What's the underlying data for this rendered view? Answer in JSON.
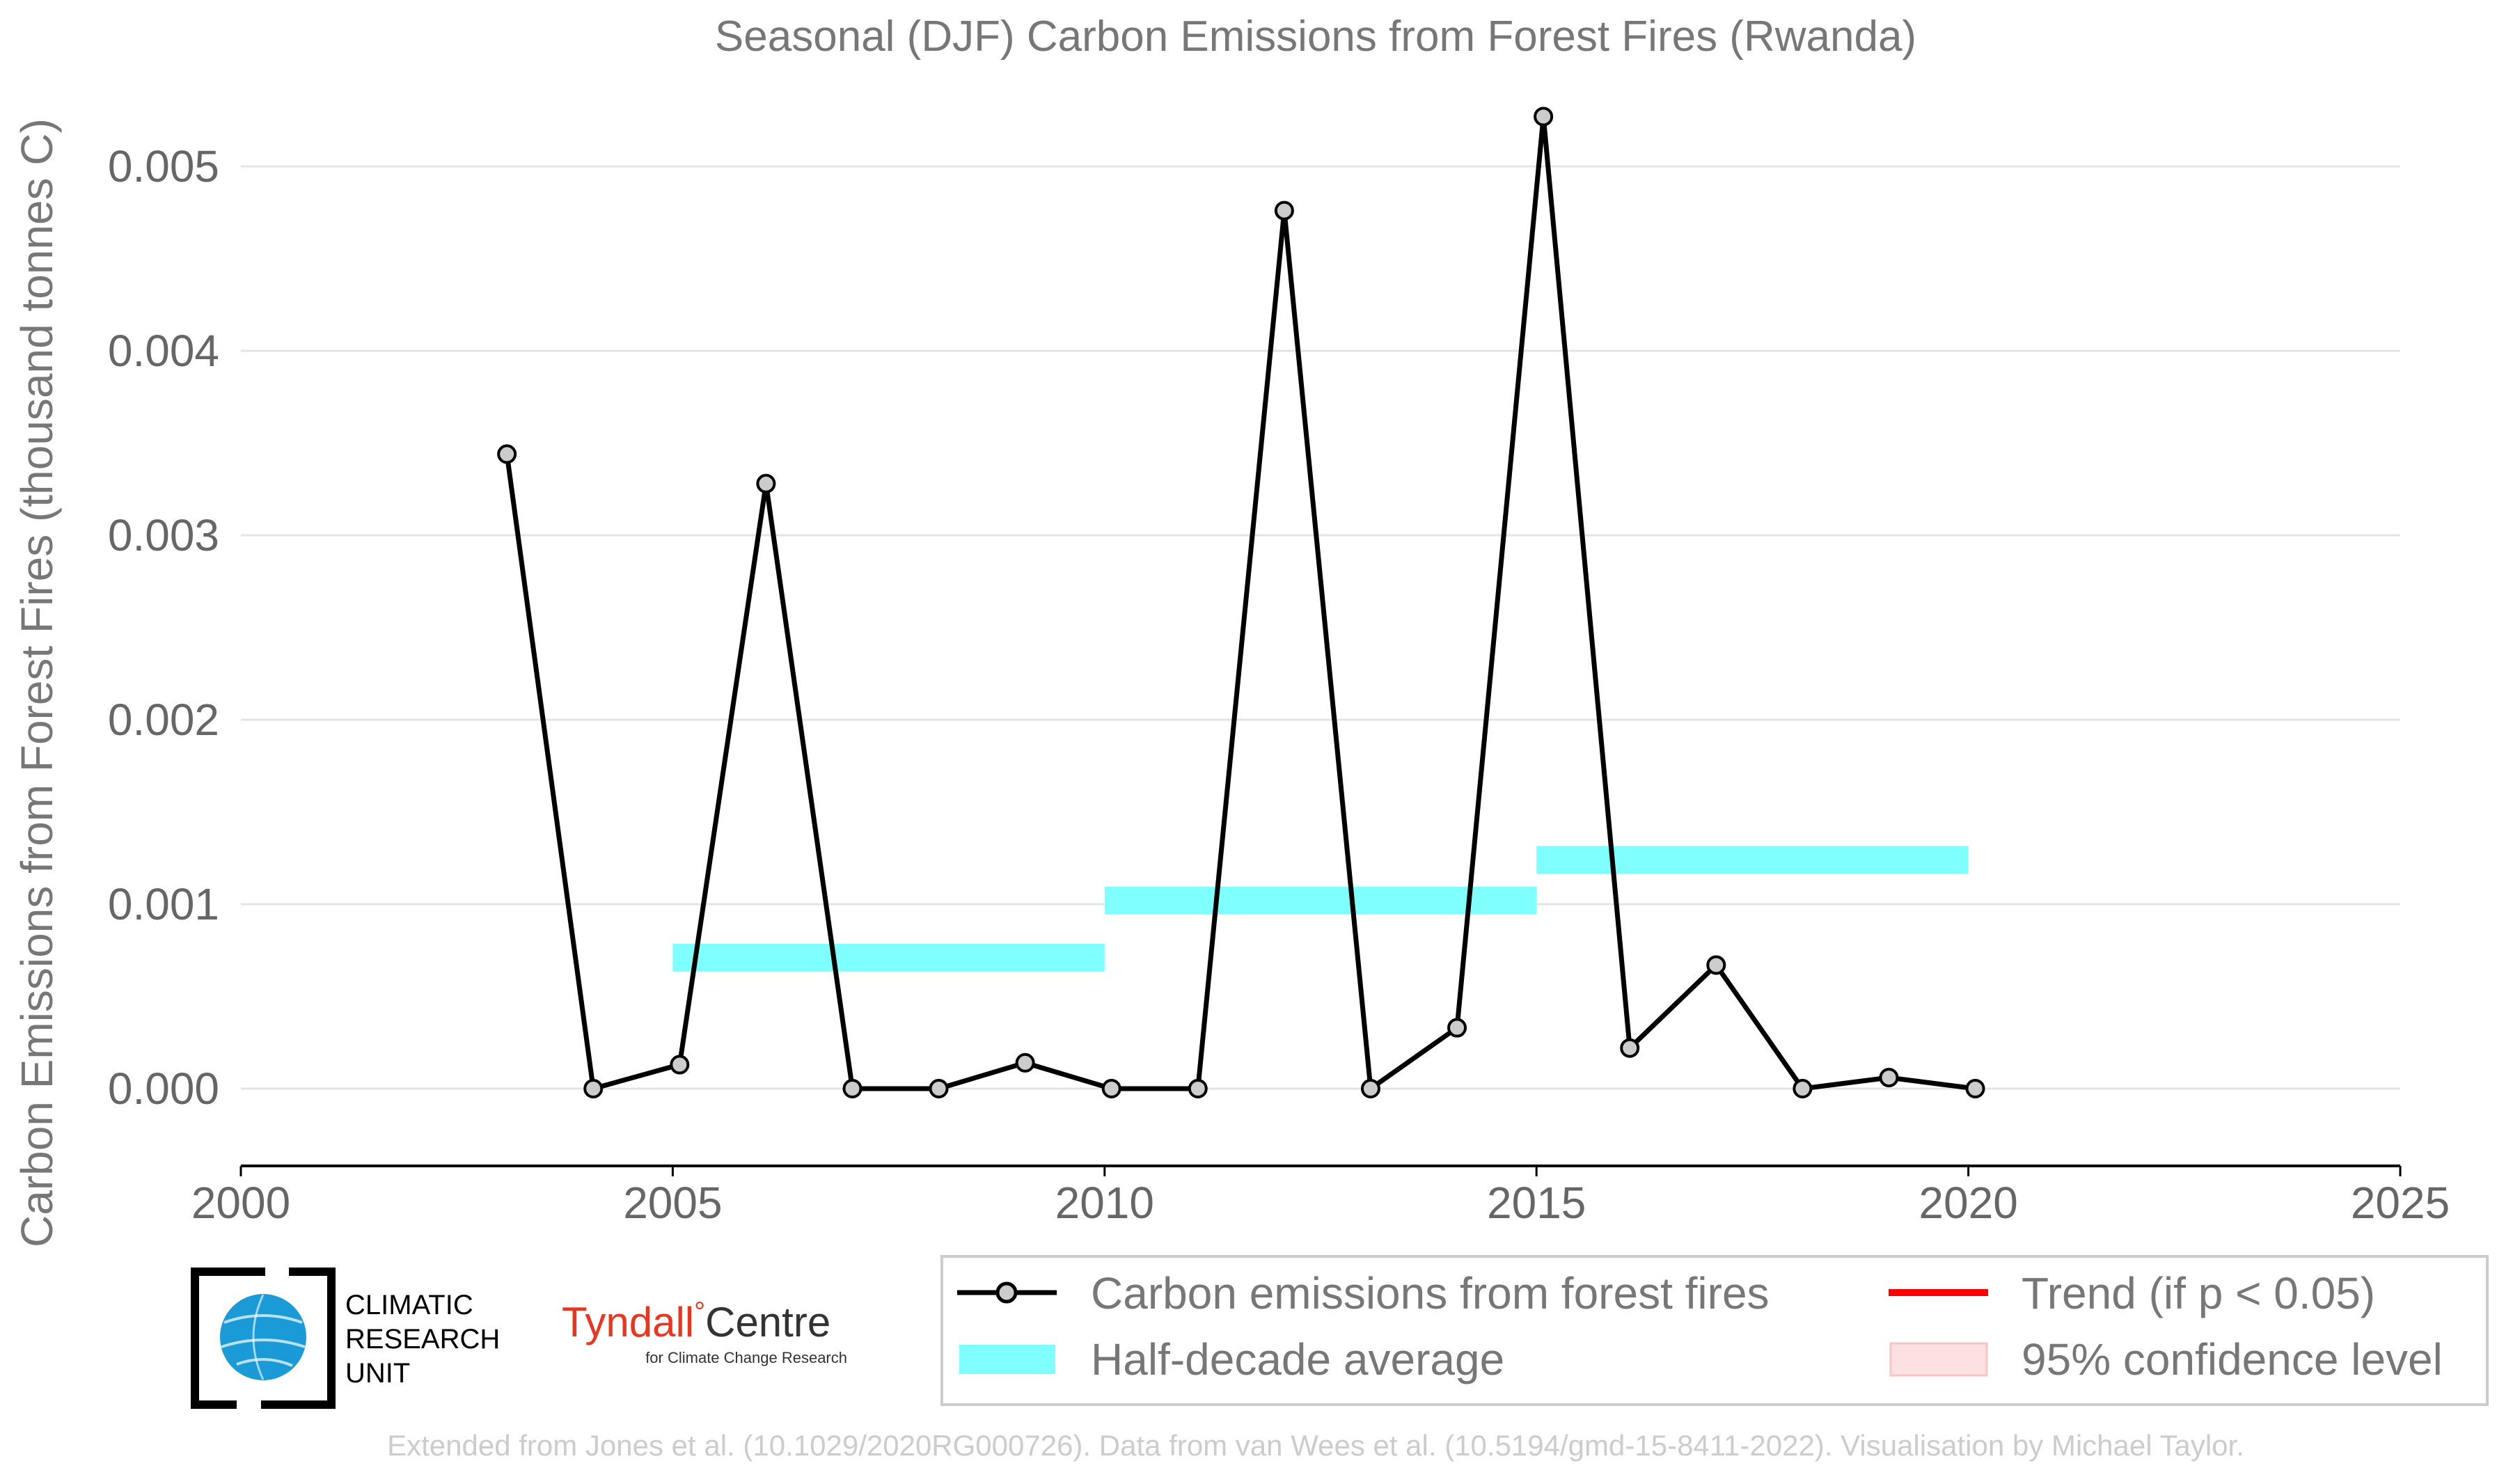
{
  "chart_data": {
    "type": "line",
    "title": "Seasonal (DJF) Carbon Emissions from Forest Fires (Rwanda)",
    "xlabel": "",
    "ylabel": "Carbon Emissions from Forest Fires (thousand tonnes C)",
    "xlim": [
      2000,
      2025
    ],
    "ylim": [
      -0.0004,
      0.0055
    ],
    "xticks": [
      2000,
      2005,
      2010,
      2015,
      2020,
      2025
    ],
    "xtick_labels": [
      "2000",
      "2005",
      "2010",
      "2015",
      "2020",
      "2025"
    ],
    "yticks": [
      0.0,
      0.001,
      0.002,
      0.003,
      0.004,
      0.005
    ],
    "ytick_labels": [
      "0.000",
      "0.001",
      "0.002",
      "0.003",
      "0.004",
      "0.005"
    ],
    "grid": "horizontal",
    "series": [
      {
        "name": "Carbon emissions from forest fires",
        "color": "#000000",
        "marker_color": "#cccccc",
        "x": [
          2003,
          2004,
          2005,
          2006,
          2007,
          2008,
          2009,
          2010,
          2011,
          2012,
          2013,
          2014,
          2015,
          2016,
          2017,
          2018,
          2019,
          2020
        ],
        "y": [
          0.00344,
          0.0,
          0.00013,
          0.00328,
          0.0,
          0.0,
          0.00014,
          0.0,
          0.0,
          0.00476,
          0.0,
          0.00033,
          0.00527,
          0.00022,
          0.00067,
          0.0,
          6e-05,
          0.0
        ]
      }
    ],
    "half_decade_averages": {
      "name": "Half-decade average",
      "color": "#7fffff",
      "segments": [
        {
          "x_start": 2005,
          "x_end": 2010,
          "value": 0.00071
        },
        {
          "x_start": 2010,
          "x_end": 2015,
          "value": 0.00102
        },
        {
          "x_start": 2015,
          "x_end": 2020,
          "value": 0.00124
        }
      ]
    },
    "legend": {
      "placement": "bottom-right",
      "entries": [
        {
          "label": "Carbon emissions from forest fires",
          "kind": "line-marker",
          "color": "#000000"
        },
        {
          "label": "Trend (if p < 0.05)",
          "kind": "line",
          "color": "#ff0000"
        },
        {
          "label": "Half-decade average",
          "kind": "band",
          "color": "#7fffff"
        },
        {
          "label": "95% confidence level",
          "kind": "band",
          "color": "#fde0e0"
        }
      ]
    }
  },
  "logos": {
    "cru_lines": [
      "CLIMATIC",
      "RESEARCH",
      "UNIT"
    ],
    "cru_icon": "globe-icon",
    "cru_color": "#1a9ad6",
    "tyndall_main": "Tyndall",
    "tyndall_degree": "°",
    "tyndall_centre": "Centre",
    "tyndall_sub": "for Climate Change Research",
    "tyndall_color": "#e8361f"
  },
  "credit": "Extended from Jones et al. (10.1029/2020RG000726). Data from van Wees et al. (10.5194/gmd-15-8411-2022). Visualisation by Michael Taylor."
}
